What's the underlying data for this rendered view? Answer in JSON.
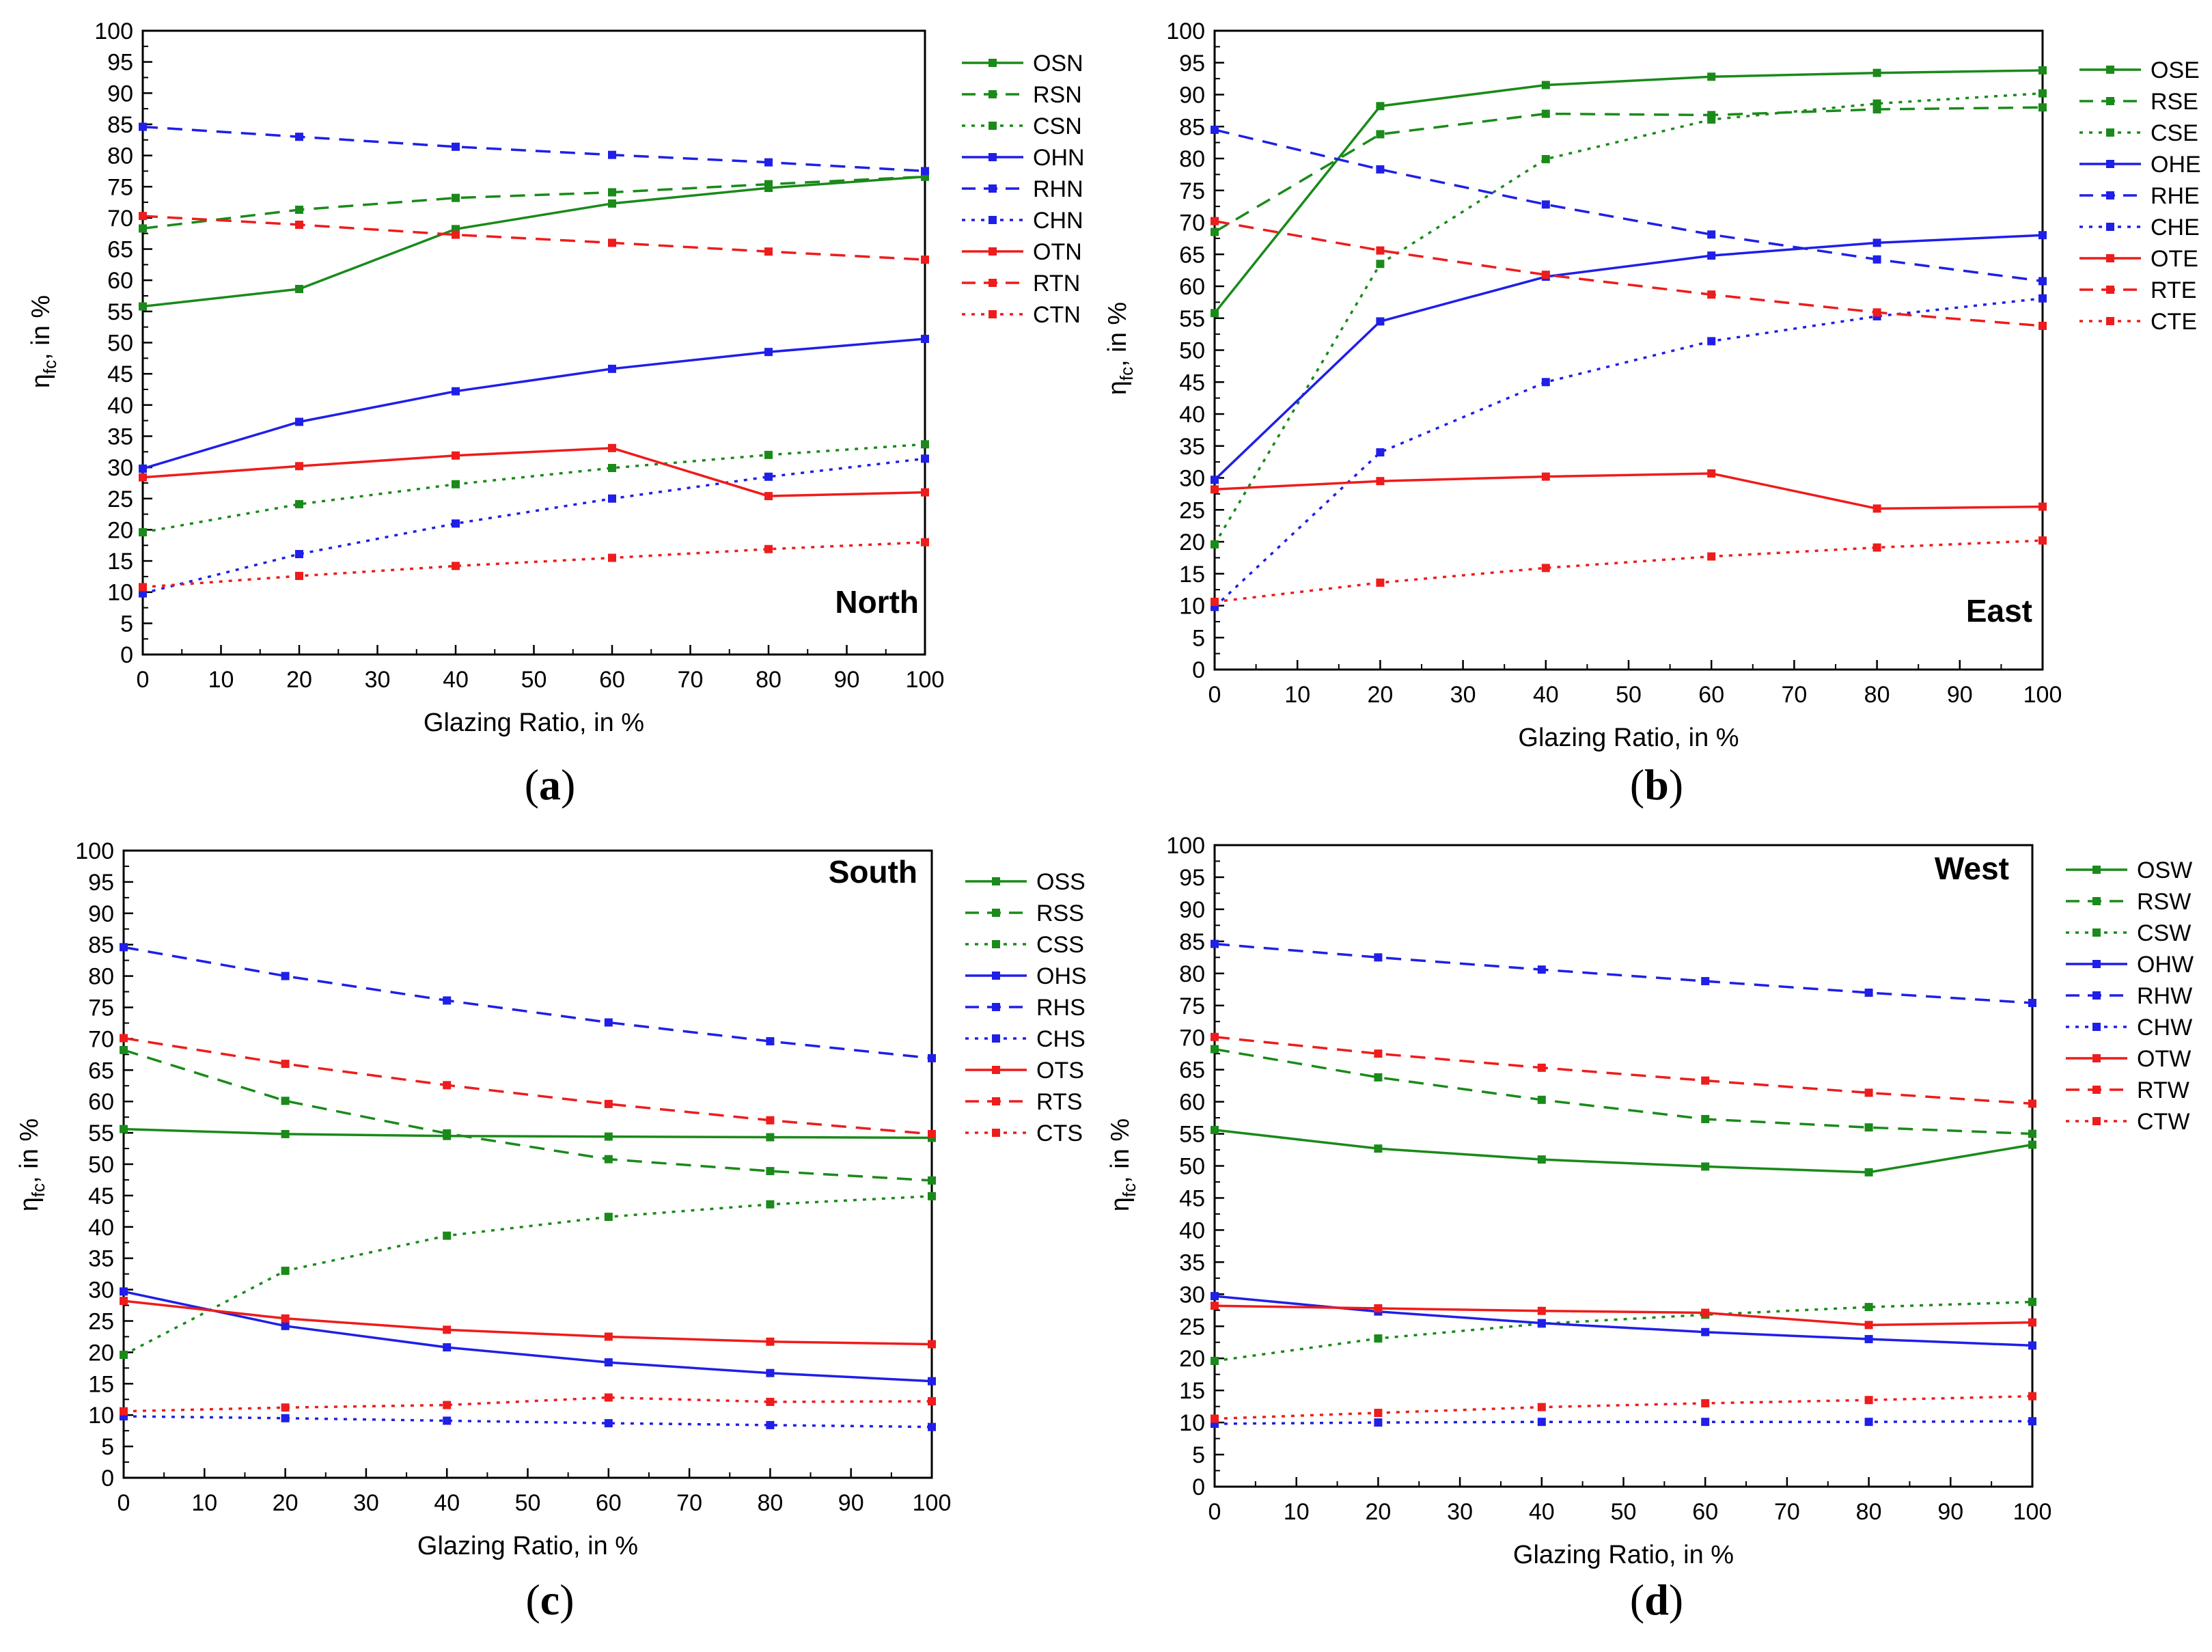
{
  "figure": {
    "colors": {
      "green": "#1a8a1a",
      "blue": "#1f1fe8",
      "red": "#ee1c1c"
    }
  },
  "chart_data": [
    {
      "id": "a",
      "type": "line",
      "panel_label": "(a)",
      "caption_letter": "a",
      "title": "North",
      "xlabel": "Glazing Ratio, in %",
      "ylabel_main": "η",
      "ylabel_sub": "fc",
      "ylabel_tail": ", in %",
      "x": [
        0,
        20,
        40,
        60,
        80,
        100
      ],
      "xlim": [
        0,
        100
      ],
      "ylim": [
        0,
        100
      ],
      "xticks": [
        0,
        10,
        20,
        30,
        40,
        50,
        60,
        70,
        80,
        90,
        100
      ],
      "yticks": [
        0,
        5,
        10,
        15,
        20,
        25,
        30,
        35,
        40,
        45,
        50,
        55,
        60,
        65,
        70,
        75,
        80,
        85,
        90,
        95,
        100
      ],
      "series": [
        {
          "name": "OSN",
          "color": "green",
          "style": "solid",
          "values": [
            55.8,
            58.6,
            68.2,
            72.3,
            74.8,
            76.6
          ]
        },
        {
          "name": "RSN",
          "color": "green",
          "style": "dashed",
          "values": [
            68.3,
            71.3,
            73.2,
            74.1,
            75.4,
            76.6
          ]
        },
        {
          "name": "CSN",
          "color": "green",
          "style": "dotted",
          "values": [
            19.6,
            24.1,
            27.3,
            29.9,
            32.0,
            33.7
          ]
        },
        {
          "name": "OHN",
          "color": "blue",
          "style": "solid",
          "values": [
            29.8,
            37.3,
            42.2,
            45.8,
            48.5,
            50.6
          ]
        },
        {
          "name": "RHN",
          "color": "blue",
          "style": "dashed",
          "values": [
            84.6,
            83.0,
            81.4,
            80.1,
            78.9,
            77.5
          ]
        },
        {
          "name": "CHN",
          "color": "blue",
          "style": "dotted",
          "values": [
            9.8,
            16.1,
            21.0,
            25.0,
            28.5,
            31.4
          ]
        },
        {
          "name": "OTN",
          "color": "red",
          "style": "solid",
          "values": [
            28.4,
            30.2,
            31.9,
            33.1,
            25.4,
            26.0
          ]
        },
        {
          "name": "RTN",
          "color": "red",
          "style": "dashed",
          "values": [
            70.3,
            68.9,
            67.3,
            66.0,
            64.6,
            63.3
          ]
        },
        {
          "name": "CTN",
          "color": "red",
          "style": "dotted",
          "values": [
            10.8,
            12.6,
            14.2,
            15.5,
            16.9,
            18.0
          ]
        }
      ]
    },
    {
      "id": "b",
      "type": "line",
      "panel_label": "(b)",
      "caption_letter": "b",
      "title": "East",
      "xlabel": "Glazing Ratio, in %",
      "ylabel_main": "η",
      "ylabel_sub": "fc",
      "ylabel_tail": ", in %",
      "x": [
        0,
        20,
        40,
        60,
        80,
        100
      ],
      "xlim": [
        0,
        100
      ],
      "ylim": [
        0,
        100
      ],
      "xticks": [
        0,
        10,
        20,
        30,
        40,
        50,
        60,
        70,
        80,
        90,
        100
      ],
      "yticks": [
        0,
        5,
        10,
        15,
        20,
        25,
        30,
        35,
        40,
        45,
        50,
        55,
        60,
        65,
        70,
        75,
        80,
        85,
        90,
        95,
        100
      ],
      "series": [
        {
          "name": "OSE",
          "color": "green",
          "style": "solid",
          "values": [
            55.8,
            88.2,
            91.5,
            92.8,
            93.4,
            93.8
          ]
        },
        {
          "name": "RSE",
          "color": "green",
          "style": "dashed",
          "values": [
            68.5,
            83.8,
            87.0,
            86.8,
            87.7,
            88.0
          ]
        },
        {
          "name": "CSE",
          "color": "green",
          "style": "dotted",
          "values": [
            19.6,
            63.5,
            79.9,
            86.1,
            88.6,
            90.2
          ]
        },
        {
          "name": "OHE",
          "color": "blue",
          "style": "solid",
          "values": [
            29.7,
            54.5,
            61.5,
            64.8,
            66.8,
            68.0
          ]
        },
        {
          "name": "RHE",
          "color": "blue",
          "style": "dashed",
          "values": [
            84.5,
            78.3,
            72.8,
            68.1,
            64.2,
            60.8
          ]
        },
        {
          "name": "CHE",
          "color": "blue",
          "style": "dotted",
          "values": [
            9.8,
            34.0,
            45.0,
            51.4,
            55.3,
            58.1
          ]
        },
        {
          "name": "OTE",
          "color": "red",
          "style": "solid",
          "values": [
            28.2,
            29.5,
            30.2,
            30.7,
            25.2,
            25.5
          ]
        },
        {
          "name": "RTE",
          "color": "red",
          "style": "dashed",
          "values": [
            70.2,
            65.6,
            61.8,
            58.7,
            55.9,
            53.8
          ]
        },
        {
          "name": "CTE",
          "color": "red",
          "style": "dotted",
          "values": [
            10.6,
            13.6,
            15.9,
            17.7,
            19.1,
            20.2
          ]
        }
      ]
    },
    {
      "id": "c",
      "type": "line",
      "panel_label": "(c)",
      "caption_letter": "c",
      "title": "South",
      "xlabel": "Glazing Ratio, in %",
      "ylabel_main": "η",
      "ylabel_sub": "fc",
      "ylabel_tail": ", in %",
      "x": [
        0,
        20,
        40,
        60,
        80,
        100
      ],
      "xlim": [
        0,
        100
      ],
      "ylim": [
        0,
        100
      ],
      "xticks": [
        0,
        10,
        20,
        30,
        40,
        50,
        60,
        70,
        80,
        90,
        100
      ],
      "yticks": [
        0,
        5,
        10,
        15,
        20,
        25,
        30,
        35,
        40,
        45,
        50,
        55,
        60,
        65,
        70,
        75,
        80,
        85,
        90,
        95,
        100
      ],
      "series": [
        {
          "name": "OSS",
          "color": "green",
          "style": "solid",
          "values": [
            55.6,
            54.8,
            54.5,
            54.4,
            54.3,
            54.2
          ]
        },
        {
          "name": "RSS",
          "color": "green",
          "style": "dashed",
          "values": [
            68.2,
            60.1,
            54.9,
            50.8,
            48.9,
            47.4
          ]
        },
        {
          "name": "CSS",
          "color": "green",
          "style": "dotted",
          "values": [
            19.6,
            33.0,
            38.6,
            41.6,
            43.6,
            44.9
          ]
        },
        {
          "name": "OHS",
          "color": "blue",
          "style": "solid",
          "values": [
            29.7,
            24.2,
            20.8,
            18.4,
            16.7,
            15.4
          ]
        },
        {
          "name": "RHS",
          "color": "blue",
          "style": "dashed",
          "values": [
            84.6,
            80.0,
            76.1,
            72.6,
            69.6,
            66.9
          ]
        },
        {
          "name": "CHS",
          "color": "blue",
          "style": "dotted",
          "values": [
            9.8,
            9.5,
            9.1,
            8.7,
            8.4,
            8.1
          ]
        },
        {
          "name": "OTS",
          "color": "red",
          "style": "solid",
          "values": [
            28.2,
            25.4,
            23.6,
            22.5,
            21.7,
            21.3
          ]
        },
        {
          "name": "RTS",
          "color": "red",
          "style": "dashed",
          "values": [
            70.1,
            66.0,
            62.6,
            59.6,
            57.0,
            54.8
          ]
        },
        {
          "name": "CTS",
          "color": "red",
          "style": "dotted",
          "values": [
            10.6,
            11.2,
            11.6,
            12.8,
            12.1,
            12.2
          ]
        }
      ]
    },
    {
      "id": "d",
      "type": "line",
      "panel_label": "(d)",
      "caption_letter": "d",
      "title": "West",
      "xlabel": "Glazing Ratio, in %",
      "ylabel_main": "η",
      "ylabel_sub": "fc",
      "ylabel_tail": ", in %",
      "x": [
        0,
        20,
        40,
        60,
        80,
        100
      ],
      "xlim": [
        0,
        100
      ],
      "ylim": [
        0,
        100
      ],
      "xticks": [
        0,
        10,
        20,
        30,
        40,
        50,
        60,
        70,
        80,
        90,
        100
      ],
      "yticks": [
        0,
        5,
        10,
        15,
        20,
        25,
        30,
        35,
        40,
        45,
        50,
        55,
        60,
        65,
        70,
        75,
        80,
        85,
        90,
        95,
        100
      ],
      "series": [
        {
          "name": "OSW",
          "color": "green",
          "style": "solid",
          "values": [
            55.6,
            52.7,
            51.0,
            49.9,
            49.0,
            53.3
          ]
        },
        {
          "name": "RSW",
          "color": "green",
          "style": "dashed",
          "values": [
            68.2,
            63.8,
            60.3,
            57.3,
            56.0,
            55.0
          ]
        },
        {
          "name": "CSW",
          "color": "green",
          "style": "dotted",
          "values": [
            19.6,
            23.1,
            25.4,
            26.8,
            28.0,
            28.8
          ]
        },
        {
          "name": "OHW",
          "color": "blue",
          "style": "solid",
          "values": [
            29.7,
            27.3,
            25.5,
            24.1,
            23.0,
            22.0
          ]
        },
        {
          "name": "RHW",
          "color": "blue",
          "style": "dashed",
          "values": [
            84.6,
            82.5,
            80.6,
            78.8,
            77.0,
            75.4
          ]
        },
        {
          "name": "CHW",
          "color": "blue",
          "style": "dotted",
          "values": [
            9.8,
            10.0,
            10.1,
            10.1,
            10.1,
            10.2
          ]
        },
        {
          "name": "OTW",
          "color": "red",
          "style": "solid",
          "values": [
            28.2,
            27.8,
            27.4,
            27.1,
            25.2,
            25.6
          ]
        },
        {
          "name": "RTW",
          "color": "red",
          "style": "dashed",
          "values": [
            70.1,
            67.5,
            65.3,
            63.3,
            61.4,
            59.7
          ]
        },
        {
          "name": "CTW",
          "color": "red",
          "style": "dotted",
          "values": [
            10.6,
            11.5,
            12.4,
            13.0,
            13.5,
            14.1
          ]
        }
      ]
    }
  ]
}
